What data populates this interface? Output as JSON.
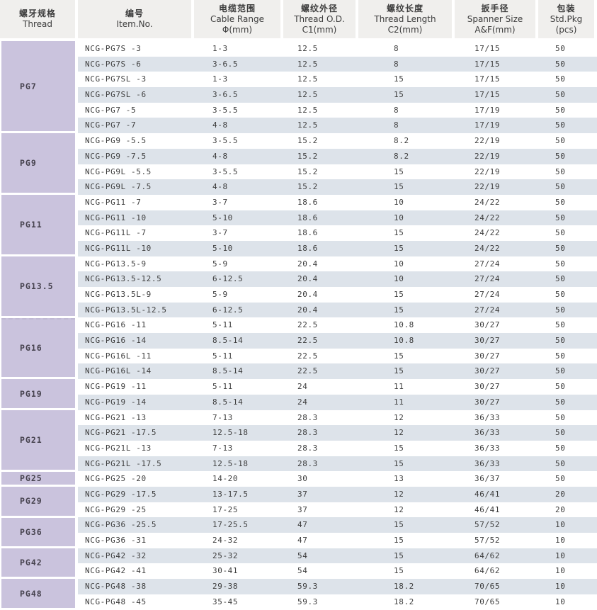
{
  "colors": {
    "header_bg": "#f0efed",
    "thread_col_bg": "#cac3dd",
    "stripe_bg": "#dde3ea",
    "text": "#3d3d3d"
  },
  "table": {
    "columns": [
      {
        "id": "thread",
        "zh": "螺牙规格",
        "en": "Thread",
        "sub": ""
      },
      {
        "id": "item",
        "zh": "编号",
        "en": "Item.No.",
        "sub": ""
      },
      {
        "id": "cable",
        "zh": "电缆范围",
        "en": "Cable Range",
        "sub": "Φ(mm)"
      },
      {
        "id": "od",
        "zh": "螺纹外径",
        "en": "Thread O.D.",
        "sub": "C1(mm)"
      },
      {
        "id": "length",
        "zh": "螺纹长度",
        "en": "Thread Length",
        "sub": "C2(mm)"
      },
      {
        "id": "spanner",
        "zh": "扳手径",
        "en": "Spanner Size",
        "sub": "A&F(mm)"
      },
      {
        "id": "pkg",
        "zh": "包装",
        "en": "Std.Pkg",
        "sub": "(pcs)"
      }
    ],
    "sections": [
      {
        "thread": "PG7",
        "rows": [
          {
            "item": "NCG-PG7S -3",
            "cable": "1-3",
            "od": "12.5",
            "length": "8",
            "spanner": "17/15",
            "pkg": "50"
          },
          {
            "item": "NCG-PG7S -6",
            "cable": "3-6.5",
            "od": "12.5",
            "length": "8",
            "spanner": "17/15",
            "pkg": "50"
          },
          {
            "item": "NCG-PG7SL -3",
            "cable": "1-3",
            "od": "12.5",
            "length": "15",
            "spanner": "17/15",
            "pkg": "50"
          },
          {
            "item": "NCG-PG7SL -6",
            "cable": "3-6.5",
            "od": "12.5",
            "length": "15",
            "spanner": "17/15",
            "pkg": "50"
          },
          {
            "item": "NCG-PG7 -5",
            "cable": "3-5.5",
            "od": "12.5",
            "length": "8",
            "spanner": "17/19",
            "pkg": "50"
          },
          {
            "item": "NCG-PG7 -7",
            "cable": "4-8",
            "od": "12.5",
            "length": "8",
            "spanner": "17/19",
            "pkg": "50"
          }
        ]
      },
      {
        "thread": "PG9",
        "rows": [
          {
            "item": "NCG-PG9 -5.5",
            "cable": "3-5.5",
            "od": "15.2",
            "length": "8.2",
            "spanner": "22/19",
            "pkg": "50"
          },
          {
            "item": "NCG-PG9 -7.5",
            "cable": "4-8",
            "od": "15.2",
            "length": "8.2",
            "spanner": "22/19",
            "pkg": "50"
          },
          {
            "item": "NCG-PG9L -5.5",
            "cable": "3-5.5",
            "od": "15.2",
            "length": "15",
            "spanner": "22/19",
            "pkg": "50"
          },
          {
            "item": "NCG-PG9L -7.5",
            "cable": "4-8",
            "od": "15.2",
            "length": "15",
            "spanner": "22/19",
            "pkg": "50"
          }
        ]
      },
      {
        "thread": "PG11",
        "rows": [
          {
            "item": "NCG-PG11 -7",
            "cable": "3-7",
            "od": "18.6",
            "length": "10",
            "spanner": "24/22",
            "pkg": "50"
          },
          {
            "item": "NCG-PG11 -10",
            "cable": "5-10",
            "od": "18.6",
            "length": "10",
            "spanner": "24/22",
            "pkg": "50"
          },
          {
            "item": "NCG-PG11L -7",
            "cable": "3-7",
            "od": "18.6",
            "length": "15",
            "spanner": "24/22",
            "pkg": "50"
          },
          {
            "item": "NCG-PG11L -10",
            "cable": "5-10",
            "od": "18.6",
            "length": "15",
            "spanner": "24/22",
            "pkg": "50"
          }
        ]
      },
      {
        "thread": "PG13.5",
        "rows": [
          {
            "item": "NCG-PG13.5-9",
            "cable": "5-9",
            "od": "20.4",
            "length": "10",
            "spanner": "27/24",
            "pkg": "50"
          },
          {
            "item": "NCG-PG13.5-12.5",
            "cable": "6-12.5",
            "od": "20.4",
            "length": "10",
            "spanner": "27/24",
            "pkg": "50"
          },
          {
            "item": "NCG-PG13.5L-9",
            "cable": "5-9",
            "od": "20.4",
            "length": "15",
            "spanner": "27/24",
            "pkg": "50"
          },
          {
            "item": "NCG-PG13.5L-12.5",
            "cable": "6-12.5",
            "od": "20.4",
            "length": "15",
            "spanner": "27/24",
            "pkg": "50"
          }
        ]
      },
      {
        "thread": "PG16",
        "rows": [
          {
            "item": "NCG-PG16 -11",
            "cable": "5-11",
            "od": "22.5",
            "length": "10.8",
            "spanner": "30/27",
            "pkg": "50"
          },
          {
            "item": "NCG-PG16 -14",
            "cable": "8.5-14",
            "od": "22.5",
            "length": "10.8",
            "spanner": "30/27",
            "pkg": "50"
          },
          {
            "item": "NCG-PG16L -11",
            "cable": "5-11",
            "od": "22.5",
            "length": "15",
            "spanner": "30/27",
            "pkg": "50"
          },
          {
            "item": "NCG-PG16L -14",
            "cable": "8.5-14",
            "od": "22.5",
            "length": "15",
            "spanner": "30/27",
            "pkg": "50"
          }
        ]
      },
      {
        "thread": "PG19",
        "rows": [
          {
            "item": "NCG-PG19 -11",
            "cable": "5-11",
            "od": "24",
            "length": "11",
            "spanner": "30/27",
            "pkg": "50"
          },
          {
            "item": "NCG-PG19 -14",
            "cable": "8.5-14",
            "od": "24",
            "length": "11",
            "spanner": "30/27",
            "pkg": "50"
          }
        ]
      },
      {
        "thread": "PG21",
        "rows": [
          {
            "item": "NCG-PG21 -13",
            "cable": "7-13",
            "od": "28.3",
            "length": "12",
            "spanner": "36/33",
            "pkg": "50"
          },
          {
            "item": "NCG-PG21 -17.5",
            "cable": "12.5-18",
            "od": "28.3",
            "length": "12",
            "spanner": "36/33",
            "pkg": "50"
          },
          {
            "item": "NCG-PG21L -13",
            "cable": "7-13",
            "od": "28.3",
            "length": "15",
            "spanner": "36/33",
            "pkg": "50"
          },
          {
            "item": "NCG-PG21L -17.5",
            "cable": "12.5-18",
            "od": "28.3",
            "length": "15",
            "spanner": "36/33",
            "pkg": "50"
          }
        ]
      },
      {
        "thread": "PG25",
        "rows": [
          {
            "item": "NCG-PG25 -20",
            "cable": "14-20",
            "od": "30",
            "length": "13",
            "spanner": "36/37",
            "pkg": "50"
          }
        ]
      },
      {
        "thread": "PG29",
        "rows": [
          {
            "item": "NCG-PG29 -17.5",
            "cable": "13-17.5",
            "od": "37",
            "length": "12",
            "spanner": "46/41",
            "pkg": "20"
          },
          {
            "item": "NCG-PG29 -25",
            "cable": "17-25",
            "od": "37",
            "length": "12",
            "spanner": "46/41",
            "pkg": "20"
          }
        ]
      },
      {
        "thread": "PG36",
        "rows": [
          {
            "item": "NCG-PG36 -25.5",
            "cable": "17-25.5",
            "od": "47",
            "length": "15",
            "spanner": "57/52",
            "pkg": "10"
          },
          {
            "item": "NCG-PG36 -31",
            "cable": "24-32",
            "od": "47",
            "length": "15",
            "spanner": "57/52",
            "pkg": "10"
          }
        ]
      },
      {
        "thread": "PG42",
        "rows": [
          {
            "item": "NCG-PG42 -32",
            "cable": "25-32",
            "od": "54",
            "length": "15",
            "spanner": "64/62",
            "pkg": "10"
          },
          {
            "item": "NCG-PG42 -41",
            "cable": "30-41",
            "od": "54",
            "length": "15",
            "spanner": "64/62",
            "pkg": "10"
          }
        ]
      },
      {
        "thread": "PG48",
        "rows": [
          {
            "item": "NCG-PG48 -38",
            "cable": "29-38",
            "od": "59.3",
            "length": "18.2",
            "spanner": "70/65",
            "pkg": "10"
          },
          {
            "item": "NCG-PG48 -45",
            "cable": "35-45",
            "od": "59.3",
            "length": "18.2",
            "spanner": "70/65",
            "pkg": "10"
          }
        ]
      }
    ]
  }
}
